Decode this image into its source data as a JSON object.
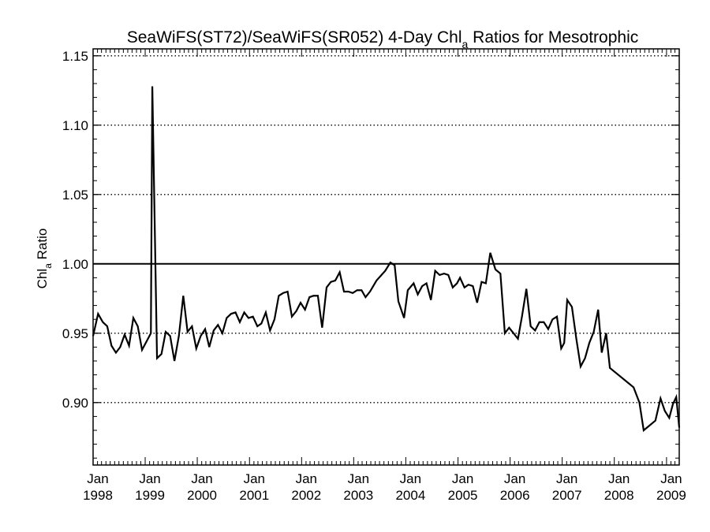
{
  "chart_data": {
    "type": "line",
    "title": {
      "prefix": "SeaWiFS(ST72)/SeaWiFS(SR052) 4-Day Chl",
      "subscript": "a",
      "suffix": " Ratios for Mesotrophic"
    },
    "ylabel": {
      "text": "Chl",
      "subscript": "a",
      "suffix": " Ratio"
    },
    "xlabel": "",
    "xlim": [
      "1998-01-01",
      "2009-03-31"
    ],
    "ylim": [
      0.855,
      1.155
    ],
    "yticks": [
      0.9,
      0.95,
      1.0,
      1.05,
      1.1,
      1.15
    ],
    "ytick_labels": [
      "0.90",
      "0.95",
      "1.00",
      "1.05",
      "1.10",
      "1.15"
    ],
    "xticks": [
      {
        "date": "1998-01-01",
        "month": "Jan",
        "year": "1998"
      },
      {
        "date": "1999-01-01",
        "month": "Jan",
        "year": "1999"
      },
      {
        "date": "2000-01-01",
        "month": "Jan",
        "year": "2000"
      },
      {
        "date": "2001-01-01",
        "month": "Jan",
        "year": "2001"
      },
      {
        "date": "2002-01-01",
        "month": "Jan",
        "year": "2002"
      },
      {
        "date": "2003-01-01",
        "month": "Jan",
        "year": "2003"
      },
      {
        "date": "2004-01-01",
        "month": "Jan",
        "year": "2004"
      },
      {
        "date": "2005-01-01",
        "month": "Jan",
        "year": "2005"
      },
      {
        "date": "2006-01-01",
        "month": "Jan",
        "year": "2006"
      },
      {
        "date": "2007-01-01",
        "month": "Jan",
        "year": "2007"
      },
      {
        "date": "2008-01-01",
        "month": "Jan",
        "year": "2008"
      },
      {
        "date": "2009-01-01",
        "month": "Jan",
        "year": "2009"
      }
    ],
    "grid": "horizontal-dotted",
    "reference_line": 1.0,
    "series": [
      {
        "points": [
          [
            "1998-01-01",
            0.948
          ],
          [
            "1998-02-05",
            0.964
          ],
          [
            "1998-03-10",
            0.958
          ],
          [
            "1998-04-10",
            0.955
          ],
          [
            "1998-05-10",
            0.941
          ],
          [
            "1998-06-10",
            0.936
          ],
          [
            "1998-07-10",
            0.94
          ],
          [
            "1998-08-10",
            0.949
          ],
          [
            "1998-09-10",
            0.941
          ],
          [
            "1998-10-10",
            0.961
          ],
          [
            "1998-11-10",
            0.955
          ],
          [
            "1998-12-10",
            0.938
          ],
          [
            "1999-01-10",
            0.944
          ],
          [
            "1999-02-10",
            0.95
          ],
          [
            "1999-02-20",
            1.128
          ],
          [
            "1999-03-25",
            0.932
          ],
          [
            "1999-04-25",
            0.935
          ],
          [
            "1999-05-25",
            0.951
          ],
          [
            "1999-06-25",
            0.948
          ],
          [
            "1999-07-25",
            0.93
          ],
          [
            "1999-08-25",
            0.948
          ],
          [
            "1999-09-25",
            0.977
          ],
          [
            "1999-10-25",
            0.951
          ],
          [
            "1999-11-25",
            0.955
          ],
          [
            "1999-12-25",
            0.939
          ],
          [
            "2000-01-25",
            0.948
          ],
          [
            "2000-02-25",
            0.953
          ],
          [
            "2000-03-25",
            0.94
          ],
          [
            "2000-04-25",
            0.952
          ],
          [
            "2000-05-25",
            0.956
          ],
          [
            "2000-06-25",
            0.95
          ],
          [
            "2000-07-25",
            0.961
          ],
          [
            "2000-08-25",
            0.964
          ],
          [
            "2000-09-25",
            0.965
          ],
          [
            "2000-10-25",
            0.958
          ],
          [
            "2000-11-25",
            0.965
          ],
          [
            "2000-12-25",
            0.961
          ],
          [
            "2001-01-25",
            0.962
          ],
          [
            "2001-02-25",
            0.955
          ],
          [
            "2001-03-25",
            0.957
          ],
          [
            "2001-04-25",
            0.965
          ],
          [
            "2001-05-25",
            0.952
          ],
          [
            "2001-06-25",
            0.96
          ],
          [
            "2001-07-25",
            0.977
          ],
          [
            "2001-08-25",
            0.979
          ],
          [
            "2001-09-25",
            0.98
          ],
          [
            "2001-10-25",
            0.962
          ],
          [
            "2001-11-25",
            0.966
          ],
          [
            "2001-12-25",
            0.972
          ],
          [
            "2002-01-25",
            0.967
          ],
          [
            "2002-02-25",
            0.976
          ],
          [
            "2002-03-25",
            0.977
          ],
          [
            "2002-04-25",
            0.977
          ],
          [
            "2002-05-25",
            0.954
          ],
          [
            "2002-06-25",
            0.983
          ],
          [
            "2002-07-25",
            0.987
          ],
          [
            "2002-08-25",
            0.988
          ],
          [
            "2002-09-25",
            0.994
          ],
          [
            "2002-10-25",
            0.98
          ],
          [
            "2002-11-25",
            0.98
          ],
          [
            "2002-12-25",
            0.979
          ],
          [
            "2003-01-25",
            0.981
          ],
          [
            "2003-02-25",
            0.981
          ],
          [
            "2003-03-25",
            0.976
          ],
          [
            "2003-04-25",
            0.98
          ],
          [
            "2003-06-10",
            0.988
          ],
          [
            "2003-08-10",
            0.995
          ],
          [
            "2003-09-15",
            1.001
          ],
          [
            "2003-10-15",
            0.999
          ],
          [
            "2003-11-10",
            0.973
          ],
          [
            "2003-12-20",
            0.961
          ],
          [
            "2004-01-15",
            0.981
          ],
          [
            "2004-02-25",
            0.986
          ],
          [
            "2004-03-25",
            0.978
          ],
          [
            "2004-04-25",
            0.984
          ],
          [
            "2004-05-25",
            0.986
          ],
          [
            "2004-06-25",
            0.974
          ],
          [
            "2004-07-25",
            0.995
          ],
          [
            "2004-08-25",
            0.992
          ],
          [
            "2004-09-25",
            0.993
          ],
          [
            "2004-10-25",
            0.992
          ],
          [
            "2004-11-25",
            0.983
          ],
          [
            "2004-12-25",
            0.986
          ],
          [
            "2005-01-15",
            0.99
          ],
          [
            "2005-02-15",
            0.983
          ],
          [
            "2005-03-15",
            0.985
          ],
          [
            "2005-04-15",
            0.984
          ],
          [
            "2005-05-15",
            0.972
          ],
          [
            "2005-06-15",
            0.987
          ],
          [
            "2005-07-15",
            0.986
          ],
          [
            "2005-08-15",
            1.008
          ],
          [
            "2005-09-20",
            0.996
          ],
          [
            "2005-10-25",
            0.993
          ],
          [
            "2005-11-25",
            0.95
          ],
          [
            "2005-12-25",
            0.954
          ],
          [
            "2006-01-25",
            0.95
          ],
          [
            "2006-02-25",
            0.946
          ],
          [
            "2006-03-25",
            0.962
          ],
          [
            "2006-04-25",
            0.982
          ],
          [
            "2006-05-25",
            0.955
          ],
          [
            "2006-06-25",
            0.952
          ],
          [
            "2006-07-25",
            0.958
          ],
          [
            "2006-08-25",
            0.958
          ],
          [
            "2006-09-25",
            0.953
          ],
          [
            "2006-10-25",
            0.96
          ],
          [
            "2006-11-25",
            0.962
          ],
          [
            "2006-12-25",
            0.939
          ],
          [
            "2007-01-15",
            0.943
          ],
          [
            "2007-02-05",
            0.974
          ],
          [
            "2007-03-10",
            0.969
          ],
          [
            "2007-04-10",
            0.946
          ],
          [
            "2007-05-10",
            0.926
          ],
          [
            "2007-06-10",
            0.932
          ],
          [
            "2007-07-10",
            0.943
          ],
          [
            "2007-08-10",
            0.951
          ],
          [
            "2007-09-10",
            0.967
          ],
          [
            "2007-10-05",
            0.936
          ],
          [
            "2007-11-05",
            0.95
          ],
          [
            "2007-12-01",
            0.925
          ],
          [
            "2008-05-15",
            0.911
          ],
          [
            "2008-06-25",
            0.9
          ],
          [
            "2008-07-25",
            0.88
          ],
          [
            "2008-10-15",
            0.887
          ],
          [
            "2008-11-20",
            0.903
          ],
          [
            "2008-12-20",
            0.894
          ],
          [
            "2009-01-20",
            0.889
          ],
          [
            "2009-02-15",
            0.899
          ],
          [
            "2009-03-10",
            0.904
          ],
          [
            "2009-03-31",
            0.882
          ]
        ]
      }
    ]
  }
}
